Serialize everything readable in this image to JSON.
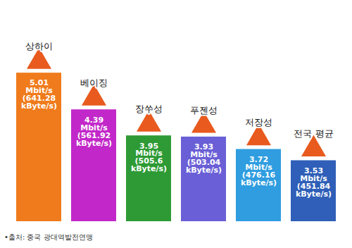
{
  "chart_data": {
    "type": "bar",
    "categories": [
      "상하이",
      "베이징",
      "장쑤성",
      "푸젠성",
      "저장성",
      "전국 평균"
    ],
    "values": [
      5.01,
      4.39,
      3.95,
      3.93,
      3.72,
      3.53
    ],
    "value_labels": [
      "5.01 Mbit/s (641.28 kByte/s)",
      "4.39 Mbit/s (561.92 kByte/s)",
      "3.95 Mbit/s (505.6 kByte/s)",
      "3.93 Mbit/s (503.04 kByte/s)",
      "3.72 Mbit/s (476.16 kByte/s)",
      "3.53 Mbit/s (451.84 kByte/s)"
    ],
    "colors": [
      "#f07b1c",
      "#c228c9",
      "#2e9a35",
      "#6a5fd6",
      "#2f9de0",
      "#2f5fb8"
    ],
    "ylim": [
      2.5,
      6
    ],
    "data_labels": true,
    "tick_labels": false,
    "caption": "•출처: 중국 광대역발전연맹"
  }
}
